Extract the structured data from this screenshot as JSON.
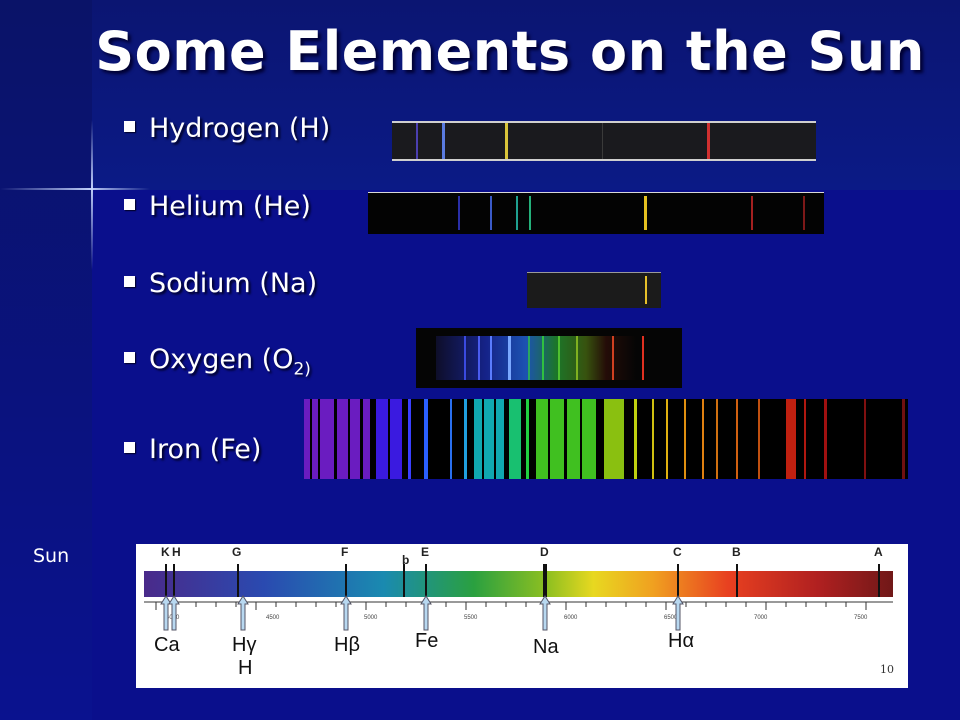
{
  "title": "Some Elements on the Sun",
  "elements": [
    {
      "label": "Hydrogen (H)"
    },
    {
      "label": "Helium (He)"
    },
    {
      "label": "Sodium (Na)"
    },
    {
      "label_main": "Oxygen (O",
      "label_sub": "2)"
    },
    {
      "label": "Iron (Fe)"
    }
  ],
  "sun_label": "Sun",
  "solar_spectrum": {
    "fraunhofer_letters": [
      "K",
      "H",
      "G",
      "F",
      "b",
      "E",
      "D",
      "C",
      "B",
      "A"
    ],
    "wavelength_ticks": [
      "4000",
      "4500",
      "5000",
      "5500",
      "6000",
      "6500",
      "7000",
      "7500"
    ],
    "line_labels": [
      "Ca",
      "Hγ",
      "H",
      "Hβ",
      "Fe",
      "Na",
      "Hα"
    ]
  },
  "slide_number": "10",
  "colors": {
    "background": "#0a0f8c",
    "text": "#ffffff"
  }
}
